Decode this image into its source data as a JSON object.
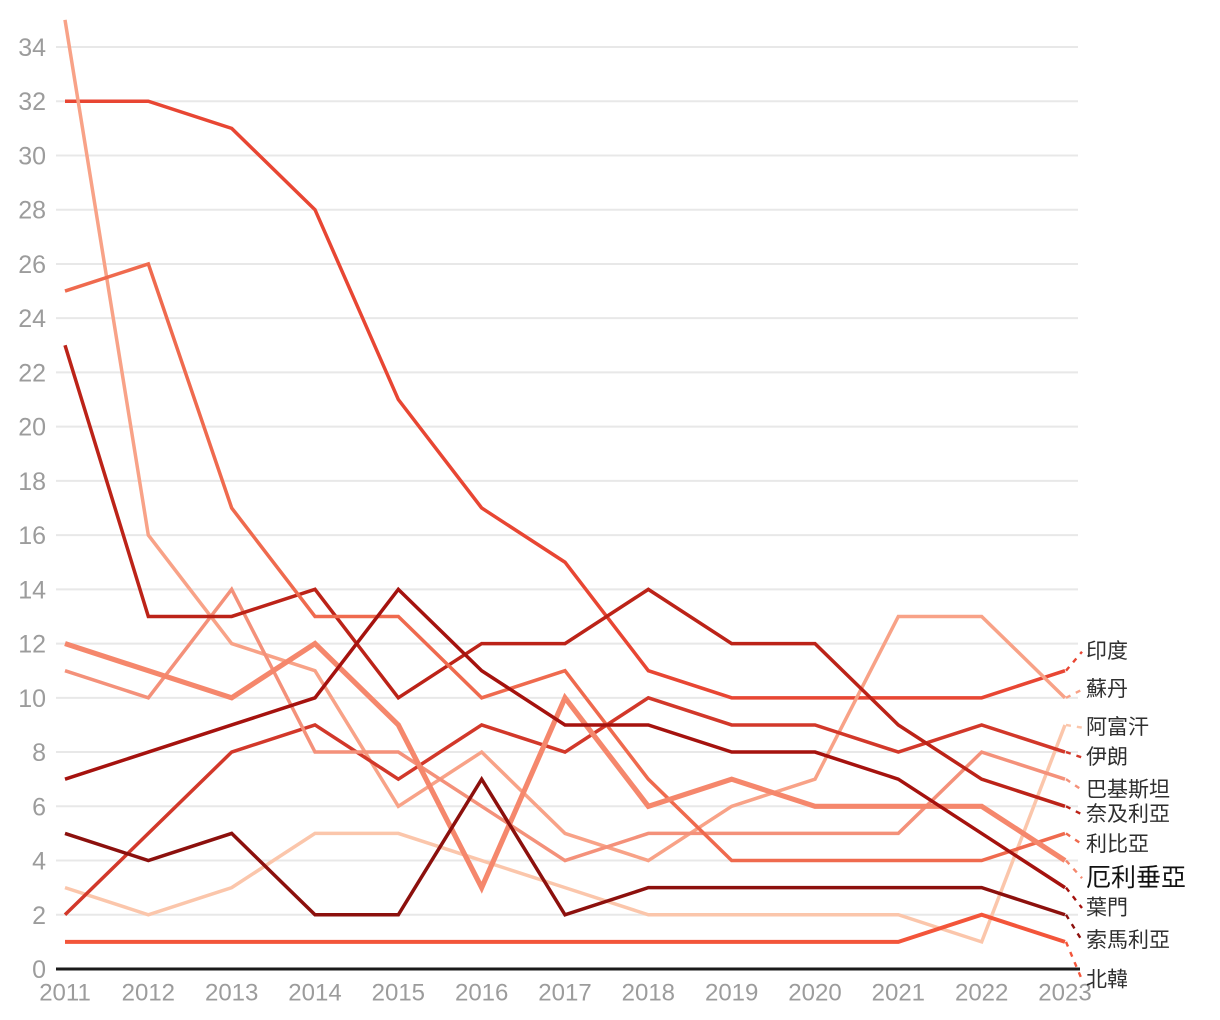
{
  "chart_data": {
    "type": "line",
    "title": "",
    "x": [
      2011,
      2012,
      2013,
      2014,
      2015,
      2016,
      2017,
      2018,
      2019,
      2020,
      2021,
      2022,
      2023
    ],
    "xlabel": "",
    "ylabel": "",
    "ylim": [
      0,
      34
    ],
    "y_tick_step": 2,
    "grid": true,
    "legend_position": "right-edge-labels",
    "leader_line_style": "dashed",
    "colors": {
      "background": "#ffffff",
      "gridline": "#e8e8e8",
      "axis_line": "#1a1a1a",
      "tick_label": "#9c9c9c",
      "series_label": "#2f2f2f",
      "highlight_label": "#111111"
    },
    "series": [
      {
        "label": "印度",
        "name_en": "india",
        "color": "#e84633",
        "width": 3.5,
        "values": [
          32,
          32,
          31,
          28,
          21,
          17,
          15,
          11,
          10,
          10,
          10,
          10,
          11
        ],
        "label_anchor_value": 11.7,
        "highlight": false
      },
      {
        "label": "蘇丹",
        "name_en": "sudan",
        "color": "#f8a287",
        "width": 3.5,
        "values": [
          35,
          16,
          12,
          11,
          6,
          8,
          5,
          4,
          6,
          7,
          13,
          13,
          10
        ],
        "label_anchor_value": 10.3,
        "highlight": false
      },
      {
        "label": "阿富汗",
        "name_en": "afghanistan",
        "color": "#fbc6ab",
        "width": 3.5,
        "values": [
          3,
          2,
          3,
          5,
          5,
          4,
          3,
          2,
          2,
          2,
          2,
          1,
          9
        ],
        "label_anchor_value": 8.9,
        "highlight": false
      },
      {
        "label": "伊朗",
        "name_en": "iran",
        "color": "#d2382a",
        "width": 3.5,
        "values": [
          2,
          5,
          8,
          9,
          7,
          9,
          8,
          10,
          9,
          9,
          8,
          9,
          8
        ],
        "label_anchor_value": 7.8,
        "highlight": false
      },
      {
        "label": "巴基斯坦",
        "name_en": "pakistan",
        "color": "#f4917a",
        "width": 3.5,
        "values": [
          11,
          10,
          14,
          8,
          8,
          6,
          4,
          5,
          5,
          5,
          5,
          8,
          7
        ],
        "label_anchor_value": 6.6,
        "highlight": false
      },
      {
        "label": "奈及利亞",
        "name_en": "nigeria",
        "color": "#bc2318",
        "width": 3.5,
        "values": [
          23,
          13,
          13,
          14,
          10,
          12,
          12,
          14,
          12,
          12,
          9,
          7,
          6
        ],
        "label_anchor_value": 5.7,
        "highlight": false
      },
      {
        "label": "利比亞",
        "name_en": "libya",
        "color": "#ef6a4e",
        "width": 3.5,
        "values": [
          25,
          26,
          17,
          13,
          13,
          10,
          11,
          7,
          4,
          4,
          4,
          4,
          5
        ],
        "label_anchor_value": 4.6,
        "highlight": false
      },
      {
        "label": "厄利垂亞",
        "name_en": "eritrea",
        "color": "#f5876c",
        "width": 5.2,
        "values": [
          12,
          11,
          10,
          12,
          9,
          3,
          10,
          6,
          7,
          6,
          6,
          6,
          4
        ],
        "label_anchor_value": 3.35,
        "highlight": true
      },
      {
        "label": "葉門",
        "name_en": "yemen",
        "color": "#a5120e",
        "width": 3.5,
        "values": [
          7,
          8,
          9,
          10,
          14,
          11,
          9,
          9,
          8,
          8,
          7,
          5,
          3
        ],
        "label_anchor_value": 2.25,
        "highlight": false
      },
      {
        "label": "索馬利亞",
        "name_en": "somalia",
        "color": "#8c100d",
        "width": 3.5,
        "values": [
          5,
          4,
          5,
          2,
          2,
          7,
          2,
          3,
          3,
          3,
          3,
          3,
          2
        ],
        "label_anchor_value": 1.05,
        "highlight": false
      },
      {
        "label": "北韓",
        "name_en": "north-korea",
        "color": "#f3553a",
        "width": 4.0,
        "values": [
          1,
          1,
          1,
          1,
          1,
          1,
          1,
          1,
          1,
          1,
          1,
          2,
          1
        ],
        "label_anchor_value": -0.4,
        "highlight": false
      }
    ]
  }
}
